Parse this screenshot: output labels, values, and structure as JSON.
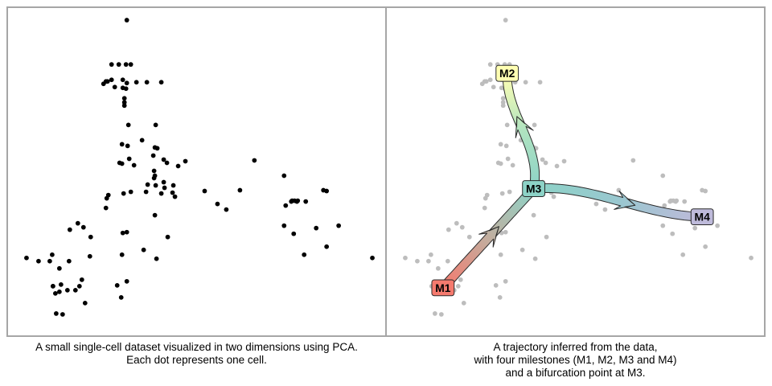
{
  "colors": {
    "cell_dot": "#000000",
    "background_cell": "#bdbdbd",
    "border": "#a6a6a6",
    "milestones": {
      "M1": "#f57a6e",
      "M2": "#ffffb3",
      "M3": "#8dd3c7",
      "M4": "#bebada"
    },
    "edges": {
      "M1-M3": [
        "#f57a6e",
        "#c2ae9f",
        "#8dd3c7"
      ],
      "M3-M2": [
        "#8dd3c7",
        "#b0e3c0",
        "#ffffb3"
      ],
      "M3-M4": [
        "#8dd3c7",
        "#99c7cf",
        "#bebada"
      ]
    }
  },
  "panels": {
    "left": {
      "caption_lines": [
        "A small single-cell dataset visualized in two dimensions using PCA.",
        "Each dot represents one cell."
      ]
    },
    "right": {
      "caption_lines": [
        "A trajectory inferred from the data,",
        "with four milestones (M1, M2, M3 and M4)",
        "and a bifurcation point at M3."
      ]
    }
  },
  "trajectory": {
    "milestones": [
      {
        "id": "M1",
        "label": "M1",
        "pc1": 68,
        "pc2": 59
      },
      {
        "id": "M2",
        "label": "M2",
        "pc1": 148,
        "pc2": 325
      },
      {
        "id": "M3",
        "label": "M3",
        "pc1": 181,
        "pc2": 182
      },
      {
        "id": "M4",
        "label": "M4",
        "pc1": 391,
        "pc2": 147
      }
    ],
    "edges": [
      {
        "from": "M1",
        "to": "M3"
      },
      {
        "from": "M3",
        "to": "M2"
      },
      {
        "from": "M3",
        "to": "M4"
      }
    ],
    "bifurcation": "M3"
  },
  "cells": [
    [
      146,
      391
    ],
    [
      127,
      336
    ],
    [
      136,
      336
    ],
    [
      145,
      336
    ],
    [
      151,
      336
    ],
    [
      122,
      315
    ],
    [
      127,
      317
    ],
    [
      141,
      317
    ],
    [
      120,
      315
    ],
    [
      117,
      312
    ],
    [
      146,
      313
    ],
    [
      158,
      314
    ],
    [
      171,
      314
    ],
    [
      189,
      314
    ],
    [
      131,
      308
    ],
    [
      141,
      307
    ],
    [
      145,
      306
    ],
    [
      143,
      294
    ],
    [
      143,
      289
    ],
    [
      143,
      285
    ],
    [
      148,
      261
    ],
    [
      182,
      261
    ],
    [
      140,
      237
    ],
    [
      165,
      242
    ],
    [
      147,
      235
    ],
    [
      192,
      218
    ],
    [
      210,
      210
    ],
    [
      149,
      219
    ],
    [
      179,
      223
    ],
    [
      181,
      233
    ],
    [
      184,
      232
    ],
    [
      219,
      216
    ],
    [
      155,
      211
    ],
    [
      196,
      214
    ],
    [
      137,
      214
    ],
    [
      140,
      213
    ],
    [
      180,
      204
    ],
    [
      180,
      195
    ],
    [
      192,
      190
    ],
    [
      189,
      176
    ],
    [
      142,
      176
    ],
    [
      151,
      178
    ],
    [
      193,
      183
    ],
    [
      170,
      178
    ],
    [
      172,
      187
    ],
    [
      203,
      177
    ],
    [
      204,
      186
    ],
    [
      181,
      198
    ],
    [
      182,
      186
    ],
    [
      243,
      179
    ],
    [
      121,
      170
    ],
    [
      123,
      174
    ],
    [
      120,
      158
    ],
    [
      206,
      172
    ],
    [
      259,
      163
    ],
    [
      270,
      156
    ],
    [
      287,
      180
    ],
    [
      305,
      217
    ],
    [
      342,
      198
    ],
    [
      344,
      161
    ],
    [
      351,
      166
    ],
    [
      359,
      167
    ],
    [
      358,
      166
    ],
    [
      355,
      167
    ],
    [
      369,
      166
    ],
    [
      391,
      180
    ],
    [
      395,
      179
    ],
    [
      342,
      136
    ],
    [
      354,
      126
    ],
    [
      382,
      133
    ],
    [
      410,
      136
    ],
    [
      395,
      110
    ],
    [
      367,
      100
    ],
    [
      452,
      96
    ],
    [
      352,
      167
    ],
    [
      181,
      149
    ],
    [
      146,
      128
    ],
    [
      140,
      100
    ],
    [
      101,
      122
    ],
    [
      85,
      139
    ],
    [
      92,
      134
    ],
    [
      75,
      131
    ],
    [
      53,
      100
    ],
    [
      36,
      92
    ],
    [
      21,
      96
    ],
    [
      50,
      92
    ],
    [
      74,
      92
    ],
    [
      62,
      83
    ],
    [
      54,
      61
    ],
    [
      87,
      61
    ],
    [
      90,
      69
    ],
    [
      94,
      40
    ],
    [
      72,
      56
    ],
    [
      62,
      54
    ],
    [
      57,
      52
    ],
    [
      64,
      63
    ],
    [
      100,
      98
    ],
    [
      134,
      62
    ],
    [
      146,
      67
    ],
    [
      139,
      47
    ],
    [
      82,
      56
    ],
    [
      58,
      27
    ],
    [
      66,
      26
    ],
    [
      54,
      61
    ],
    [
      197,
      122
    ],
    [
      183,
      95
    ],
    [
      167,
      106
    ],
    [
      141,
      127
    ]
  ]
}
